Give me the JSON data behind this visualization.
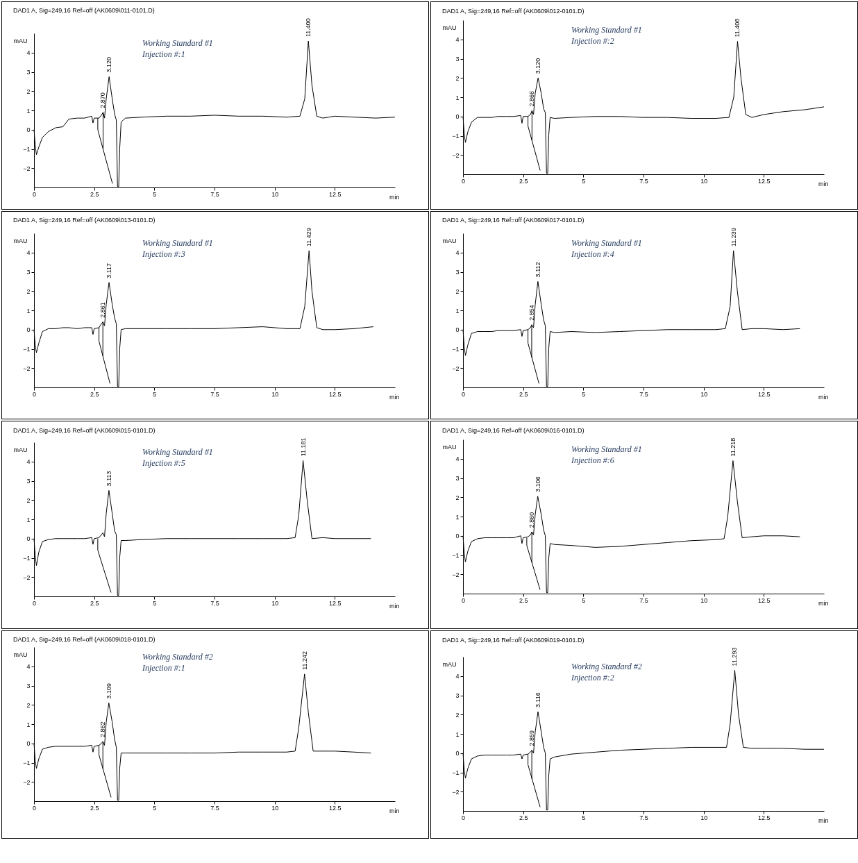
{
  "chart_data": [
    {
      "type": "line",
      "title": "DAD1 A, Sig=249,16 Ref=off (AK0609\\011-0101.D)",
      "xlabel": "min",
      "ylabel": "mAU",
      "xlim": [
        0,
        15
      ],
      "xticks": [
        0,
        2.5,
        5,
        7.5,
        10,
        12.5
      ],
      "ylim": [
        -3,
        5
      ],
      "yticks": [
        -2,
        -1,
        0,
        1,
        2,
        3,
        4
      ],
      "annotations": [
        "Working Standard #1",
        "Injection #:1",
        {
          "text": "2.870",
          "x": 2.87,
          "y": 0.9
        },
        {
          "text": "3.120",
          "x": 3.12,
          "y": 2.75
        },
        {
          "text": "11.400",
          "x": 11.4,
          "y": 4.6
        }
      ],
      "series": [
        {
          "color": "#000000",
          "x": [
            0,
            0.05,
            0.1,
            0.2,
            0.35,
            0.6,
            0.9,
            1.2,
            1.45,
            1.8,
            2.1,
            2.4,
            2.45,
            2.5,
            2.7,
            2.8,
            2.87,
            2.93,
            3.0,
            3.12,
            3.25,
            3.35,
            3.42,
            3.47,
            3.52,
            3.56,
            3.62,
            3.8,
            4.5,
            5.5,
            6.5,
            7.5,
            8.5,
            9.5,
            10.5,
            11.05,
            11.25,
            11.4,
            11.55,
            11.75,
            12.0,
            12.5,
            13.3,
            14.2,
            15
          ],
          "values": [
            0,
            -0.8,
            -1.3,
            -0.9,
            -0.4,
            -0.1,
            0.1,
            0.15,
            0.55,
            0.6,
            0.6,
            0.7,
            0.35,
            0.6,
            0.6,
            0.75,
            0.9,
            0.6,
            1.6,
            2.75,
            1.6,
            0.8,
            0.5,
            -2.95,
            -2.95,
            -1.0,
            0.4,
            0.6,
            0.65,
            0.7,
            0.7,
            0.75,
            0.7,
            0.7,
            0.65,
            0.7,
            1.6,
            4.6,
            2.3,
            0.7,
            0.6,
            0.7,
            0.65,
            0.6,
            0.65
          ]
        },
        {
          "color": "#000000",
          "x": [
            2.65,
            2.65,
            3.26
          ],
          "values": [
            0.6,
            0,
            -2.8
          ]
        },
        {
          "color": "#000000",
          "x": [
            2.87,
            2.87
          ],
          "values": [
            0.9,
            -1.0
          ]
        }
      ]
    },
    {
      "type": "line",
      "title": "DAD1 A, Sig=249,16 Ref=off (AK0609\\012-0101.D)",
      "xlabel": "min",
      "ylabel": "mAU",
      "xlim": [
        0,
        15
      ],
      "xticks": [
        0,
        2.5,
        5,
        7.5,
        10,
        12.5
      ],
      "ylim": [
        -3,
        5
      ],
      "yticks": [
        -2,
        -1,
        0,
        1,
        2,
        3,
        4
      ],
      "annotations": [
        "Working Standard #1",
        "Injection #:2",
        {
          "text": "2.866",
          "x": 2.866,
          "y": 0.3
        },
        {
          "text": "3.120",
          "x": 3.12,
          "y": 2.0
        },
        {
          "text": "11.408",
          "x": 11.408,
          "y": 3.9
        }
      ],
      "series": [
        {
          "color": "#000000",
          "x": [
            0,
            0.05,
            0.1,
            0.2,
            0.35,
            0.6,
            0.9,
            1.2,
            1.45,
            1.8,
            2.1,
            2.4,
            2.45,
            2.5,
            2.7,
            2.8,
            2.866,
            2.93,
            3.0,
            3.12,
            3.25,
            3.35,
            3.42,
            3.47,
            3.52,
            3.56,
            3.62,
            3.8,
            4.5,
            5.5,
            6.5,
            7.5,
            8.5,
            9.5,
            10.5,
            11.05,
            11.25,
            11.408,
            11.55,
            11.75,
            12.0,
            12.5,
            13.3,
            14.2,
            15
          ],
          "values": [
            0,
            -0.9,
            -1.35,
            -0.8,
            -0.3,
            -0.05,
            -0.05,
            -0.05,
            0.0,
            0.0,
            0.0,
            0.05,
            -0.35,
            0.0,
            0.0,
            0.1,
            0.3,
            0.1,
            1.2,
            2.0,
            1.2,
            0.4,
            0.2,
            -2.95,
            -2.95,
            -1.0,
            -0.05,
            -0.1,
            -0.05,
            0.0,
            0.0,
            -0.05,
            -0.05,
            -0.1,
            -0.1,
            -0.05,
            1.0,
            3.9,
            2.0,
            0.1,
            -0.05,
            0.1,
            0.25,
            0.35,
            0.5
          ]
        },
        {
          "color": "#000000",
          "x": [
            2.7,
            2.7,
            3.206
          ],
          "values": [
            0.0,
            -0.5,
            -2.8
          ]
        },
        {
          "color": "#000000",
          "x": [
            2.866,
            2.866
          ],
          "values": [
            0.3,
            -1.25
          ]
        }
      ]
    },
    {
      "type": "line",
      "title": "DAD1 A, Sig=249,16 Ref=off (AK0609\\013-0101.D)",
      "xlabel": "min",
      "ylabel": "mAU",
      "xlim": [
        0,
        15
      ],
      "xticks": [
        0,
        2.5,
        5,
        7.5,
        10,
        12.5
      ],
      "ylim": [
        -3,
        5
      ],
      "yticks": [
        -2,
        -1,
        0,
        1,
        2,
        3,
        4
      ],
      "annotations": [
        "Working Standard #1",
        "Injection #:3",
        {
          "text": "2.861",
          "x": 2.861,
          "y": 0.4
        },
        {
          "text": "3.117",
          "x": 3.117,
          "y": 2.45
        },
        {
          "text": "11.429",
          "x": 11.429,
          "y": 4.1
        }
      ],
      "series": [
        {
          "color": "#000000",
          "x": [
            0,
            0.05,
            0.1,
            0.2,
            0.35,
            0.6,
            0.9,
            1.2,
            1.45,
            1.8,
            2.1,
            2.4,
            2.45,
            2.5,
            2.7,
            2.8,
            2.861,
            2.93,
            3.0,
            3.117,
            3.25,
            3.35,
            3.42,
            3.47,
            3.52,
            3.56,
            3.62,
            3.8,
            4.5,
            5.5,
            6.5,
            7.5,
            8.5,
            9.5,
            10.5,
            11.05,
            11.25,
            11.429,
            11.55,
            11.75,
            12.0,
            12.5,
            13.3,
            14.1
          ],
          "values": [
            0,
            -0.8,
            -1.2,
            -0.7,
            -0.1,
            0.05,
            0.05,
            0.1,
            0.1,
            0.05,
            0.1,
            0.1,
            -0.25,
            0.05,
            0.1,
            0.3,
            0.4,
            0.2,
            1.3,
            2.45,
            1.3,
            0.6,
            0.3,
            -2.95,
            -2.95,
            -1.0,
            0.0,
            0.05,
            0.05,
            0.05,
            0.05,
            0.05,
            0.1,
            0.15,
            0.05,
            0.05,
            1.2,
            4.1,
            2.0,
            0.1,
            0.0,
            0.0,
            0.05,
            0.15
          ]
        },
        {
          "color": "#000000",
          "x": [
            2.7,
            2.7,
            3.158
          ],
          "values": [
            0.1,
            -0.6,
            -2.8
          ]
        },
        {
          "color": "#000000",
          "x": [
            2.861,
            2.861
          ],
          "values": [
            0.4,
            -1.37
          ]
        }
      ]
    },
    {
      "type": "line",
      "title": "DAD1 A, Sig=249,16 Ref=off (AK0609\\017-0101.D)",
      "xlabel": "min",
      "ylabel": "mAU",
      "xlim": [
        0,
        15
      ],
      "xticks": [
        0,
        2.5,
        5,
        7.5,
        10,
        12.5
      ],
      "ylim": [
        -3,
        5
      ],
      "yticks": [
        -2,
        -1,
        0,
        1,
        2,
        3,
        4
      ],
      "annotations": [
        "Working Standard #1",
        "Injection #:4",
        {
          "text": "2.854",
          "x": 2.854,
          "y": 0.25
        },
        {
          "text": "3.112",
          "x": 3.112,
          "y": 2.5
        },
        {
          "text": "11.239",
          "x": 11.239,
          "y": 4.1
        }
      ],
      "series": [
        {
          "color": "#000000",
          "x": [
            0,
            0.05,
            0.1,
            0.2,
            0.35,
            0.6,
            0.9,
            1.2,
            1.45,
            1.8,
            2.1,
            2.4,
            2.45,
            2.5,
            2.7,
            2.8,
            2.854,
            2.93,
            3.0,
            3.112,
            3.25,
            3.35,
            3.42,
            3.47,
            3.52,
            3.56,
            3.62,
            3.8,
            4.5,
            5.5,
            6.5,
            7.5,
            8.5,
            9.5,
            10.5,
            10.9,
            11.1,
            11.239,
            11.4,
            11.6,
            12.0,
            12.5,
            13.3,
            14.0
          ],
          "values": [
            0,
            -0.9,
            -1.35,
            -0.8,
            -0.2,
            -0.1,
            -0.1,
            -0.1,
            -0.05,
            -0.05,
            -0.05,
            0.0,
            -0.35,
            -0.05,
            0.0,
            0.1,
            0.25,
            0.1,
            1.3,
            2.5,
            1.3,
            0.5,
            0.2,
            -2.95,
            -2.95,
            -1.0,
            -0.1,
            -0.15,
            -0.1,
            -0.15,
            -0.1,
            -0.05,
            0.0,
            0.0,
            0.0,
            0.05,
            1.2,
            4.1,
            2.0,
            0.0,
            0.05,
            0.05,
            0.0,
            0.05
          ]
        },
        {
          "color": "#000000",
          "x": [
            2.7,
            2.7,
            3.157
          ],
          "values": [
            0.0,
            -0.7,
            -2.8
          ]
        },
        {
          "color": "#000000",
          "x": [
            2.854,
            2.854
          ],
          "values": [
            0.25,
            -1.45
          ]
        }
      ]
    },
    {
      "type": "line",
      "title": "DAD1 A, Sig=249,16 Ref=off (AK0609\\015-0101.D)",
      "xlabel": "min",
      "ylabel": "mAU",
      "xlim": [
        0,
        15
      ],
      "xticks": [
        0,
        2.5,
        5,
        7.5,
        10,
        12.5
      ],
      "ylim": [
        -3,
        5
      ],
      "yticks": [
        -2,
        -1,
        0,
        1,
        2,
        3,
        4
      ],
      "annotations": [
        "Working Standard #1",
        "Injection #:5",
        {
          "text": "3.113",
          "x": 3.113,
          "y": 2.5
        },
        {
          "text": "11.181",
          "x": 11.181,
          "y": 4.05
        }
      ],
      "series": [
        {
          "color": "#000000",
          "x": [
            0,
            0.05,
            0.1,
            0.2,
            0.35,
            0.6,
            0.9,
            1.2,
            1.45,
            1.8,
            2.1,
            2.4,
            2.45,
            2.5,
            2.7,
            2.8,
            2.86,
            2.93,
            3.0,
            3.113,
            3.25,
            3.35,
            3.42,
            3.47,
            3.52,
            3.56,
            3.62,
            3.8,
            4.5,
            5.5,
            6.5,
            7.5,
            8.5,
            9.5,
            10.5,
            10.85,
            11.0,
            11.181,
            11.35,
            11.55,
            12.0,
            12.5,
            13.3,
            14.0
          ],
          "values": [
            0,
            -0.9,
            -1.4,
            -0.7,
            -0.15,
            -0.05,
            0.0,
            0.0,
            0.0,
            0.0,
            0.0,
            0.05,
            -0.3,
            0.0,
            0.05,
            0.2,
            0.3,
            0.1,
            1.3,
            2.5,
            1.3,
            0.4,
            0.2,
            -2.95,
            -2.95,
            -1.0,
            -0.1,
            -0.1,
            -0.05,
            0.0,
            0.0,
            0.0,
            0.0,
            0.0,
            0.0,
            0.05,
            1.2,
            4.05,
            2.0,
            0.0,
            0.05,
            0.0,
            0.0,
            0.0
          ]
        },
        {
          "color": "#000000",
          "x": [
            2.65,
            2.65,
            3.2
          ],
          "values": [
            0.0,
            -0.6,
            -2.8
          ]
        }
      ]
    },
    {
      "type": "line",
      "title": "DAD1 A, Sig=249,16 Ref=off (AK0609\\016-0101.D)",
      "xlabel": "min",
      "ylabel": "mAU",
      "xlim": [
        0,
        15
      ],
      "xticks": [
        0,
        2.5,
        5,
        7.5,
        10,
        12.5
      ],
      "ylim": [
        -3,
        5
      ],
      "yticks": [
        -2,
        -1,
        0,
        1,
        2,
        3,
        4
      ],
      "annotations": [
        "Working Standard #1",
        "Injection #:6",
        {
          "text": "2.860",
          "x": 2.86,
          "y": 0.2
        },
        {
          "text": "3.106",
          "x": 3.106,
          "y": 2.05
        },
        {
          "text": "11.218",
          "x": 11.218,
          "y": 3.9
        }
      ],
      "series": [
        {
          "color": "#000000",
          "x": [
            0,
            0.05,
            0.1,
            0.2,
            0.35,
            0.6,
            0.9,
            1.2,
            1.45,
            1.8,
            2.1,
            2.4,
            2.45,
            2.5,
            2.7,
            2.8,
            2.86,
            2.93,
            3.0,
            3.106,
            3.25,
            3.35,
            3.42,
            3.47,
            3.52,
            3.56,
            3.62,
            3.8,
            4.5,
            5.5,
            6.5,
            7.5,
            8.5,
            9.5,
            10.5,
            10.85,
            11.0,
            11.218,
            11.4,
            11.6,
            12.0,
            12.5,
            13.3,
            14.0
          ],
          "values": [
            0,
            -0.9,
            -1.35,
            -0.8,
            -0.3,
            -0.15,
            -0.1,
            -0.1,
            -0.1,
            -0.1,
            -0.1,
            0.0,
            -0.4,
            -0.1,
            -0.05,
            0.05,
            0.2,
            0.05,
            1.1,
            2.05,
            1.1,
            0.3,
            0.0,
            -2.95,
            -2.95,
            -1.2,
            -0.4,
            -0.45,
            -0.5,
            -0.6,
            -0.55,
            -0.45,
            -0.35,
            -0.25,
            -0.2,
            -0.15,
            1.0,
            3.9,
            1.8,
            -0.1,
            -0.05,
            0.0,
            0.0,
            -0.05
          ]
        },
        {
          "color": "#000000",
          "x": [
            2.65,
            2.65,
            3.202
          ],
          "values": [
            -0.1,
            -0.5,
            -2.8
          ]
        },
        {
          "color": "#000000",
          "x": [
            2.86,
            2.86
          ],
          "values": [
            0.2,
            -1.38
          ]
        }
      ]
    },
    {
      "type": "line",
      "title": "DAD1 A, Sig=249,16 Ref=off (AK0609\\018-0101.D)",
      "xlabel": "min",
      "ylabel": "mAU",
      "xlim": [
        0,
        15
      ],
      "xticks": [
        0,
        2.5,
        5,
        7.5,
        10,
        12.5
      ],
      "ylim": [
        -3,
        5
      ],
      "yticks": [
        -2,
        -1,
        0,
        1,
        2,
        3,
        4
      ],
      "annotations": [
        "Working Standard #2",
        "Injection #:1",
        {
          "text": "2.862",
          "x": 2.862,
          "y": 0.1
        },
        {
          "text": "3.109",
          "x": 3.109,
          "y": 2.1
        },
        {
          "text": "11.242",
          "x": 11.242,
          "y": 3.6
        }
      ],
      "series": [
        {
          "color": "#000000",
          "x": [
            0,
            0.05,
            0.1,
            0.2,
            0.35,
            0.6,
            0.9,
            1.2,
            1.45,
            1.8,
            2.1,
            2.4,
            2.45,
            2.5,
            2.7,
            2.8,
            2.862,
            2.93,
            3.0,
            3.109,
            3.25,
            3.35,
            3.42,
            3.47,
            3.52,
            3.56,
            3.62,
            3.8,
            4.5,
            5.5,
            6.5,
            7.5,
            8.5,
            9.5,
            10.5,
            10.85,
            11.0,
            11.242,
            11.4,
            11.6,
            12.0,
            12.5,
            13.3,
            14.0
          ],
          "values": [
            0,
            -0.9,
            -1.3,
            -0.8,
            -0.3,
            -0.2,
            -0.15,
            -0.15,
            -0.15,
            -0.15,
            -0.15,
            -0.1,
            -0.45,
            -0.15,
            -0.1,
            0.0,
            0.1,
            -0.1,
            1.1,
            2.1,
            1.1,
            0.2,
            -0.2,
            -2.95,
            -2.95,
            -1.3,
            -0.5,
            -0.5,
            -0.5,
            -0.5,
            -0.5,
            -0.5,
            -0.45,
            -0.45,
            -0.45,
            -0.4,
            0.8,
            3.6,
            1.6,
            -0.4,
            -0.4,
            -0.4,
            -0.45,
            -0.5
          ]
        },
        {
          "color": "#000000",
          "x": [
            2.7,
            2.7,
            3.204
          ],
          "values": [
            -0.1,
            -0.6,
            -2.8
          ]
        },
        {
          "color": "#000000",
          "x": [
            2.862,
            2.862
          ],
          "values": [
            0.1,
            -1.31
          ]
        }
      ]
    },
    {
      "type": "line",
      "title": "DAD1 A, Sig=249,16 Ref=off (AK0609\\019-0101.D)",
      "xlabel": "min",
      "ylabel": "mAU",
      "xlim": [
        0,
        15
      ],
      "xticks": [
        0,
        2.5,
        5,
        7.5,
        10,
        12.5
      ],
      "ylim": [
        -3,
        5
      ],
      "yticks": [
        -2,
        -1,
        0,
        1,
        2,
        3,
        4
      ],
      "annotations": [
        "Working Standard #2",
        "Injection #:2",
        {
          "text": "2.859",
          "x": 2.859,
          "y": 0.15
        },
        {
          "text": "3.116",
          "x": 3.116,
          "y": 2.15
        },
        {
          "text": "11.293",
          "x": 11.293,
          "y": 4.3
        }
      ],
      "series": [
        {
          "color": "#000000",
          "x": [
            0,
            0.05,
            0.1,
            0.2,
            0.35,
            0.6,
            0.9,
            1.2,
            1.45,
            1.8,
            2.1,
            2.4,
            2.45,
            2.5,
            2.7,
            2.8,
            2.859,
            2.93,
            3.0,
            3.116,
            3.25,
            3.35,
            3.42,
            3.47,
            3.52,
            3.56,
            3.62,
            3.8,
            4.5,
            5.5,
            6.5,
            7.5,
            8.5,
            9.5,
            10.5,
            10.95,
            11.1,
            11.293,
            11.45,
            11.65,
            12.0,
            12.5,
            13.3,
            14.2,
            15
          ],
          "values": [
            0,
            -0.9,
            -1.3,
            -0.8,
            -0.3,
            -0.15,
            -0.1,
            -0.1,
            -0.1,
            -0.1,
            -0.1,
            -0.05,
            -0.3,
            -0.1,
            -0.05,
            0.05,
            0.15,
            0.0,
            1.1,
            2.15,
            1.1,
            0.3,
            0.0,
            -2.95,
            -2.95,
            -1.2,
            -0.3,
            -0.2,
            -0.05,
            0.05,
            0.15,
            0.2,
            0.25,
            0.3,
            0.3,
            0.3,
            1.5,
            4.3,
            2.0,
            0.3,
            0.25,
            0.25,
            0.25,
            0.2,
            0.2
          ]
        },
        {
          "color": "#000000",
          "x": [
            2.7,
            2.7,
            3.204
          ],
          "values": [
            -0.05,
            -0.6,
            -2.8
          ]
        },
        {
          "color": "#000000",
          "x": [
            2.859,
            2.859
          ],
          "values": [
            0.15,
            -1.35
          ]
        }
      ]
    }
  ]
}
